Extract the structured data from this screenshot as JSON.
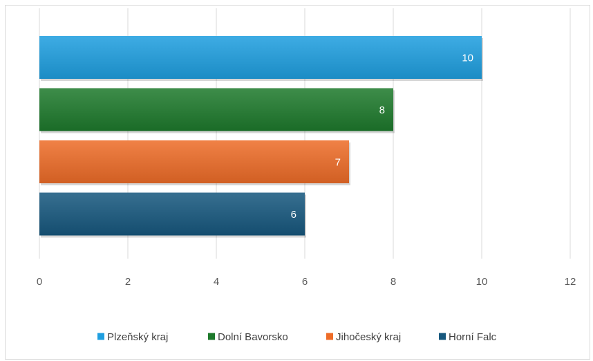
{
  "chart_data": {
    "type": "bar",
    "orientation": "horizontal",
    "categories": [
      "Plzeňský kraj",
      "Dolní Bavorsko",
      "Jihočeský kraj",
      "Horní Falc"
    ],
    "series": [
      {
        "name": "Plzeňský kraj",
        "value": 10,
        "color": "#1f9fe0"
      },
      {
        "name": "Dolní Bavorsko",
        "value": 8,
        "color": "#1e7a2c"
      },
      {
        "name": "Jihočeský kraj",
        "value": 7,
        "color": "#ee6c28"
      },
      {
        "name": "Horní Falc",
        "value": 6,
        "color": "#17587e"
      }
    ],
    "values": [
      10,
      8,
      7,
      6
    ],
    "title": "",
    "xlabel": "",
    "ylabel": "",
    "xlim": [
      0,
      12
    ],
    "ticks": [
      0,
      2,
      4,
      6,
      8,
      10,
      12
    ],
    "tick_labels": [
      "0",
      "2",
      "4",
      "6",
      "8",
      "10",
      "12"
    ],
    "grid": "vertical",
    "data_labels": "inside-end",
    "legend_position": "bottom"
  }
}
